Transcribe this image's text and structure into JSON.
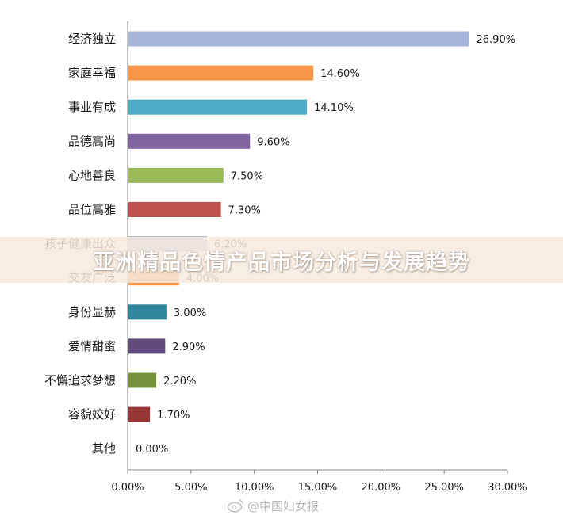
{
  "banner": {
    "title": "亚洲精品色情产品市场分析与发展趋势"
  },
  "watermark": {
    "text": "@中国妇女报"
  },
  "chart_data": {
    "type": "bar",
    "orientation": "horizontal",
    "categories": [
      "经济独立",
      "家庭幸福",
      "事业有成",
      "品德高尚",
      "心地善良",
      "品位高雅",
      "孩子健康出众",
      "交友广泛",
      "身份显赫",
      "爱情甜蜜",
      "不懈追求梦想",
      "容貌姣好",
      "其他"
    ],
    "values": [
      26.9,
      14.6,
      14.1,
      9.6,
      7.5,
      7.3,
      6.2,
      4.0,
      3.0,
      2.9,
      2.2,
      1.7,
      0.0
    ],
    "value_labels": [
      "26.90%",
      "14.60%",
      "14.10%",
      "9.60%",
      "7.50%",
      "7.30%",
      "6.20%",
      "4.00%",
      "3.00%",
      "2.90%",
      "2.20%",
      "1.70%",
      "0.00%"
    ],
    "colors": [
      "#A6B6D8",
      "#F79646",
      "#4BACC6",
      "#8064A2",
      "#9BBB59",
      "#C0504D",
      "#A6B6D8",
      "#F79646",
      "#31859C",
      "#604A7B",
      "#76923C",
      "#953735",
      "#A6B6D8"
    ],
    "xlim": [
      0,
      30
    ],
    "xticks": [
      0,
      5,
      10,
      15,
      20,
      25,
      30
    ],
    "xtick_labels": [
      "0.00%",
      "5.00%",
      "10.00%",
      "15.00%",
      "20.00%",
      "25.00%",
      "30.00%"
    ],
    "grid": false,
    "title": "",
    "xlabel": "",
    "ylabel": ""
  }
}
